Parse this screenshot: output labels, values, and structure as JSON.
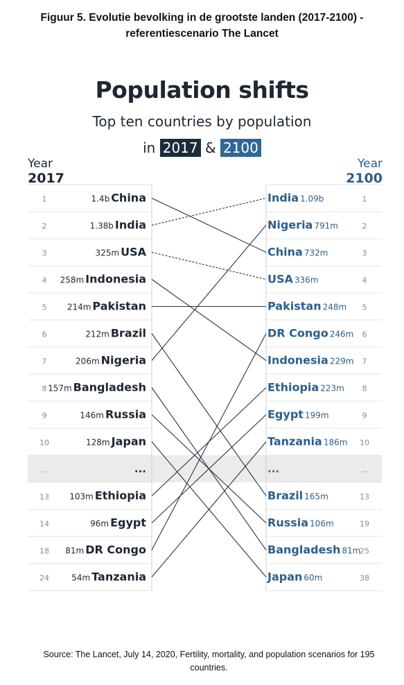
{
  "caption": "Figuur 5. Evolutie bevolking in de grootste landen (2017-2100) - referentiescenario The Lancet",
  "source": "Source: The Lancet, July 14, 2020, Fertility, mortality, and population scenarios for 195 countries.",
  "chart_data": {
    "type": "slope",
    "title": "Population shifts",
    "subtitle": "Top ten countries by population",
    "years_prefix": "in",
    "years_joiner": "&",
    "left_year": "2017",
    "right_year": "2100",
    "left_axis_label": "Year",
    "right_axis_label": "Year",
    "ellipsis": "...",
    "colors": {
      "left_text": "#1c2733",
      "right_text": "#2b5f8c",
      "line": "#2b3440",
      "left_year_box": "#1b2b3a",
      "right_year_box": "#2f6796",
      "gap_row": "#ebebeb"
    },
    "left": [
      {
        "rank": "1",
        "value": "1.4b",
        "country": "China"
      },
      {
        "rank": "2",
        "value": "1.38b",
        "country": "India"
      },
      {
        "rank": "3",
        "value": "325m",
        "country": "USA"
      },
      {
        "rank": "4",
        "value": "258m",
        "country": "Indonesia"
      },
      {
        "rank": "5",
        "value": "214m",
        "country": "Pakistan"
      },
      {
        "rank": "6",
        "value": "212m",
        "country": "Brazil"
      },
      {
        "rank": "7",
        "value": "206m",
        "country": "Nigeria"
      },
      {
        "rank": "8",
        "value": "157m",
        "country": "Bangladesh"
      },
      {
        "rank": "9",
        "value": "146m",
        "country": "Russia"
      },
      {
        "rank": "10",
        "value": "128m",
        "country": "Japan"
      },
      {
        "rank": "...",
        "value": "",
        "country": "...",
        "gap": true
      },
      {
        "rank": "13",
        "value": "103m",
        "country": "Ethiopia"
      },
      {
        "rank": "14",
        "value": "96m",
        "country": "Egypt"
      },
      {
        "rank": "18",
        "value": "81m",
        "country": "DR Congo"
      },
      {
        "rank": "24",
        "value": "54m",
        "country": "Tanzania"
      }
    ],
    "right": [
      {
        "rank": "1",
        "value": "1.09b",
        "country": "India"
      },
      {
        "rank": "2",
        "value": "791m",
        "country": "Nigeria"
      },
      {
        "rank": "3",
        "value": "732m",
        "country": "China"
      },
      {
        "rank": "4",
        "value": "336m",
        "country": "USA"
      },
      {
        "rank": "5",
        "value": "248m",
        "country": "Pakistan"
      },
      {
        "rank": "6",
        "value": "246m",
        "country": "DR Congo"
      },
      {
        "rank": "7",
        "value": "229m",
        "country": "Indonesia"
      },
      {
        "rank": "8",
        "value": "223m",
        "country": "Ethiopia"
      },
      {
        "rank": "9",
        "value": "199m",
        "country": "Egypt"
      },
      {
        "rank": "10",
        "value": "186m",
        "country": "Tanzania"
      },
      {
        "rank": "...",
        "value": "",
        "country": "...",
        "gap": true
      },
      {
        "rank": "13",
        "value": "165m",
        "country": "Brazil"
      },
      {
        "rank": "19",
        "value": "106m",
        "country": "Russia"
      },
      {
        "rank": "25",
        "value": "81m",
        "country": "Bangladesh"
      },
      {
        "rank": "38",
        "value": "60m",
        "country": "Japan"
      }
    ],
    "dashed_links": [
      "India",
      "USA"
    ]
  }
}
